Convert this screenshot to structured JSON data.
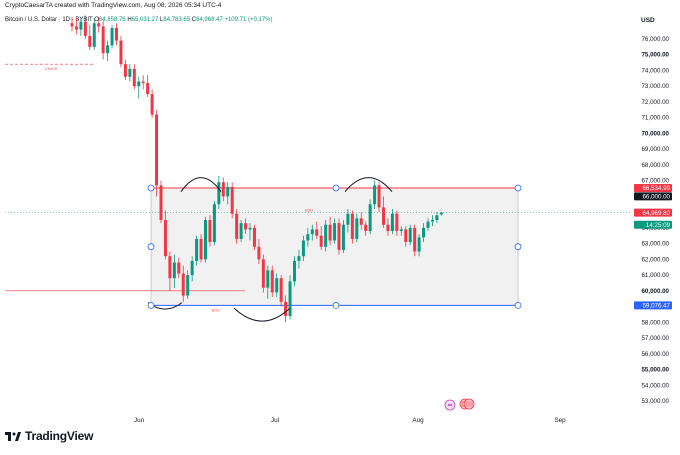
{
  "header": {
    "byline": "CryptoCaesarTA created with TradingView.com, Aug 08, 2026 05:34 UTC-4"
  },
  "legend": {
    "symbol": "Bitcoin / U.S. Dollar · 1D · BYBIT",
    "open_label": "O",
    "open": "64,858.76",
    "high_label": "H",
    "high": "65,031.27",
    "low_label": "L",
    "low": "64,783.65",
    "close_label": "C",
    "close": "64,968.47",
    "change": "+109.71 (+0.17%)"
  },
  "currency": "USD",
  "footer": {
    "brand": "TradingView"
  },
  "colors": {
    "up": "#089981",
    "down": "#f23645",
    "range_line_top": "#f23645",
    "range_line_bottom": "#2962ff",
    "range_fill": "#eeeeee"
  },
  "chart_data": {
    "type": "candlestick",
    "xlabel": "",
    "ylabel": "",
    "x_ticks": [
      "Jun",
      "Jul",
      "Aug",
      "Sep"
    ],
    "y_ticks": [
      "53,000.00",
      "54,000.00",
      "55,000.00",
      "56,000.00",
      "57,000.00",
      "58,000.00",
      "59,000.00",
      "60,000.00",
      "61,000.00",
      "62,000.00",
      "63,000.00",
      "64,000.00",
      "65,000.00",
      "66,000.00",
      "67,000.00",
      "68,000.00",
      "69,000.00",
      "70,000.00",
      "71,000.00",
      "72,000.00",
      "73,000.00",
      "74,000.00",
      "75,000.00",
      "76,000.00"
    ],
    "ylim": [
      52500,
      77000
    ],
    "grid": false,
    "price_labels": [
      {
        "text": "66,534.99",
        "value": 66535,
        "color": "#f23645"
      },
      {
        "text": "66,000.00",
        "value": 66000,
        "color": "#131722"
      },
      {
        "text": "64,969.80",
        "value": 64969.8,
        "color": "#f23645"
      },
      {
        "text": "14:25:09",
        "value": 64200,
        "color": "#089981"
      },
      {
        "text": "59,076.47",
        "value": 59076.47,
        "color": "#2962ff"
      }
    ],
    "range": {
      "top": 66535,
      "bottom": 59076.47
    },
    "annotations": [
      {
        "text": "CHoCH",
        "value": 74400
      },
      {
        "text": "EQH",
        "value": 65050
      },
      {
        "text": "BOS",
        "value": 58700
      }
    ],
    "candles": [
      [
        77000,
        77400,
        76500,
        76800
      ],
      [
        76800,
        77300,
        76300,
        76600
      ],
      [
        76600,
        77400,
        76200,
        77100
      ],
      [
        77100,
        77500,
        76000,
        76200
      ],
      [
        76200,
        76900,
        75300,
        75500
      ],
      [
        75500,
        77300,
        75300,
        77000
      ],
      [
        77000,
        77400,
        76400,
        76800
      ],
      [
        76800,
        77200,
        74700,
        75100
      ],
      [
        75100,
        75900,
        74600,
        75600
      ],
      [
        75600,
        76900,
        75400,
        76700
      ],
      [
        76700,
        77000,
        75600,
        75900
      ],
      [
        75900,
        76200,
        74200,
        74400
      ],
      [
        74400,
        74700,
        73400,
        73600
      ],
      [
        73600,
        74400,
        73300,
        74100
      ],
      [
        74100,
        74400,
        72800,
        73000
      ],
      [
        73000,
        73600,
        72200,
        73300
      ],
      [
        73300,
        73700,
        72800,
        73200
      ],
      [
        73200,
        73700,
        72300,
        72500
      ],
      [
        72500,
        72800,
        71000,
        71200
      ],
      [
        71200,
        71500,
        66000,
        66700
      ],
      [
        66700,
        67000,
        64300,
        64500
      ],
      [
        64500,
        65100,
        62000,
        62200
      ],
      [
        62200,
        62500,
        60000,
        60800
      ],
      [
        60800,
        62300,
        60200,
        61800
      ],
      [
        61800,
        62100,
        60800,
        61100
      ],
      [
        61100,
        61600,
        59300,
        59700
      ],
      [
        59700,
        61300,
        59500,
        61000
      ],
      [
        61000,
        62200,
        60600,
        61900
      ],
      [
        61900,
        63500,
        61600,
        63300
      ],
      [
        63300,
        63600,
        61800,
        62000
      ],
      [
        62000,
        64700,
        61800,
        64500
      ],
      [
        64500,
        64800,
        62800,
        63100
      ],
      [
        63100,
        65700,
        62900,
        65500
      ],
      [
        65500,
        67300,
        65200,
        66900
      ],
      [
        66900,
        67200,
        65700,
        66000
      ],
      [
        66000,
        66900,
        65500,
        66600
      ],
      [
        66600,
        66900,
        64600,
        64900
      ],
      [
        64900,
        65200,
        63000,
        63300
      ],
      [
        63300,
        64500,
        63100,
        64300
      ],
      [
        64300,
        64600,
        63600,
        63900
      ],
      [
        63900,
        64300,
        63200,
        64000
      ],
      [
        64000,
        64200,
        62600,
        62800
      ],
      [
        62800,
        63300,
        61700,
        62000
      ],
      [
        62000,
        62300,
        59900,
        60200
      ],
      [
        60200,
        61600,
        59500,
        61300
      ],
      [
        61300,
        61600,
        59600,
        59900
      ],
      [
        59900,
        61100,
        59600,
        60800
      ],
      [
        60800,
        61000,
        59000,
        59300
      ],
      [
        59300,
        59700,
        58000,
        58400
      ],
      [
        58400,
        61000,
        58200,
        60600
      ],
      [
        60600,
        62200,
        60300,
        61900
      ],
      [
        61900,
        62600,
        61400,
        62200
      ],
      [
        62200,
        63500,
        61900,
        63200
      ],
      [
        63200,
        64000,
        62800,
        63600
      ],
      [
        63600,
        64200,
        63200,
        63900
      ],
      [
        63900,
        64400,
        63300,
        63500
      ],
      [
        63500,
        64100,
        62600,
        62800
      ],
      [
        62800,
        64500,
        62500,
        64200
      ],
      [
        64200,
        64700,
        62900,
        63200
      ],
      [
        63200,
        64600,
        63000,
        64300
      ],
      [
        64300,
        64600,
        62300,
        62600
      ],
      [
        62600,
        64500,
        62400,
        64200
      ],
      [
        64200,
        65200,
        63700,
        64900
      ],
      [
        64900,
        65100,
        63000,
        63300
      ],
      [
        63300,
        64900,
        63100,
        64600
      ],
      [
        64600,
        65000,
        63900,
        64200
      ],
      [
        64200,
        64400,
        63500,
        63800
      ],
      [
        63800,
        65800,
        63600,
        65500
      ],
      [
        65500,
        67000,
        65200,
        66700
      ],
      [
        66700,
        66900,
        65000,
        65300
      ],
      [
        65300,
        66000,
        64000,
        64200
      ],
      [
        64200,
        64600,
        63500,
        63800
      ],
      [
        63800,
        65200,
        63600,
        64900
      ],
      [
        64900,
        65100,
        63500,
        63800
      ],
      [
        63800,
        64100,
        63500,
        63900
      ],
      [
        63900,
        64100,
        62800,
        63100
      ],
      [
        63100,
        64200,
        62900,
        64000
      ],
      [
        64000,
        64200,
        62200,
        62500
      ],
      [
        62500,
        63600,
        62200,
        63400
      ],
      [
        63400,
        64300,
        63100,
        64000
      ],
      [
        64000,
        64600,
        63800,
        64400
      ],
      [
        64400,
        64800,
        64100,
        64500
      ],
      [
        64500,
        65000,
        64300,
        64800
      ],
      [
        64858.76,
        65031.27,
        64783.65,
        64968.47
      ]
    ]
  }
}
